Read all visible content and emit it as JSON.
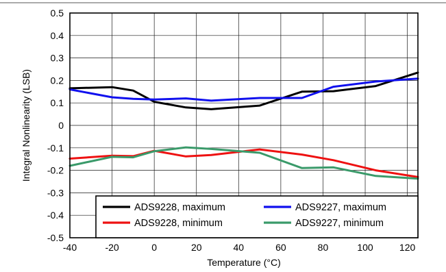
{
  "chart_data": {
    "type": "line",
    "xlabel": "Temperature (°C)",
    "ylabel": "Integral Nonlinearity (LSB)",
    "xlim": [
      -40,
      125
    ],
    "ylim": [
      -0.5,
      0.5
    ],
    "xticks": [
      -40,
      -20,
      0,
      20,
      40,
      60,
      80,
      100,
      120
    ],
    "yticks": [
      0.5,
      0.4,
      0.3,
      0.2,
      0.1,
      0,
      -0.1,
      -0.2,
      -0.3,
      -0.4,
      -0.5
    ],
    "grid": true,
    "legend_position": "bottom-right",
    "series": [
      {
        "name": "ADS9228, maximum",
        "color": "#000000",
        "x": [
          -40,
          -20,
          -10,
          0,
          15,
          27,
          50,
          70,
          85,
          105,
          125
        ],
        "y": [
          0.165,
          0.17,
          0.155,
          0.105,
          0.08,
          0.072,
          0.088,
          0.15,
          0.152,
          0.175,
          0.235
        ]
      },
      {
        "name": "ADS9227, maximum",
        "color": "#1010ee",
        "x": [
          -40,
          -20,
          -10,
          0,
          15,
          27,
          50,
          70,
          85,
          105,
          125
        ],
        "y": [
          0.16,
          0.125,
          0.118,
          0.115,
          0.12,
          0.11,
          0.122,
          0.122,
          0.172,
          0.195,
          0.208
        ]
      },
      {
        "name": "ADS9228, minimum",
        "color": "#ee1111",
        "x": [
          -40,
          -20,
          -10,
          0,
          15,
          27,
          50,
          70,
          85,
          105,
          125
        ],
        "y": [
          -0.148,
          -0.135,
          -0.137,
          -0.113,
          -0.138,
          -0.132,
          -0.107,
          -0.13,
          -0.155,
          -0.2,
          -0.23
        ]
      },
      {
        "name": "ADS9227, minimum",
        "color": "#3a9a6a",
        "x": [
          -40,
          -20,
          -10,
          0,
          15,
          27,
          50,
          70,
          85,
          105,
          125
        ],
        "y": [
          -0.18,
          -0.14,
          -0.142,
          -0.115,
          -0.098,
          -0.105,
          -0.122,
          -0.19,
          -0.187,
          -0.225,
          -0.237
        ]
      }
    ]
  }
}
